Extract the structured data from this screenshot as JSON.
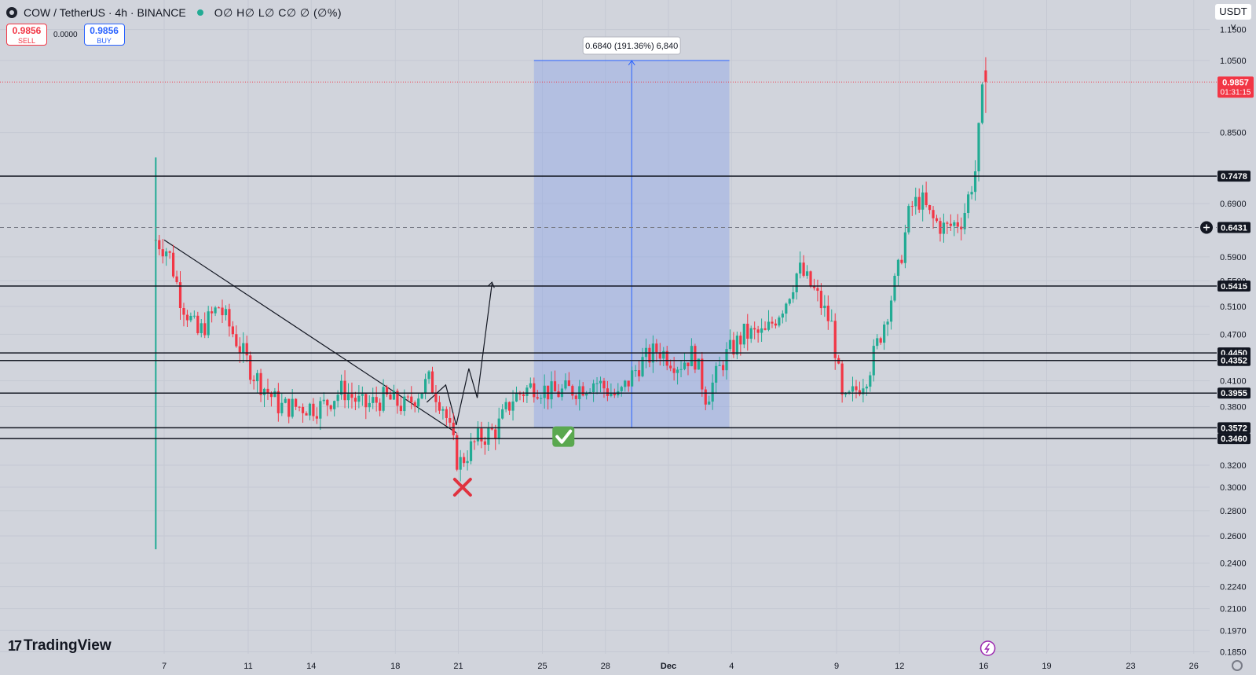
{
  "header": {
    "symbol": "COW / TetherUS · 4h · BINANCE",
    "ohlc": "O∅ H∅ L∅ C∅ ∅ (∅%)"
  },
  "trade": {
    "sell_price": "0.9856",
    "sell_label": "SELL",
    "spread": "0.0000",
    "buy_price": "0.9856",
    "buy_label": "BUY"
  },
  "currency_button": "USDT ˅",
  "brand": "TradingView",
  "colors": {
    "background": "#d1d4dc",
    "up": "#22ab94",
    "down": "#f23645",
    "range_fill": "#8fa7e6",
    "range_line": "#2962ff",
    "level_line": "#131722"
  },
  "icons": [
    "tradingview-logo-icon",
    "settings-icon",
    "lightning-icon",
    "plus-circle-icon",
    "checkmark-icon",
    "cross-icon"
  ],
  "chart_data": {
    "type": "candlestick",
    "symbol": "COW/USDT",
    "interval": "4h",
    "scale": "log",
    "y_ticks": [
      "1.1500",
      "1.0500",
      "0.8500",
      "0.6900",
      "0.5900",
      "0.5500",
      "0.5100",
      "0.4700",
      "0.4100",
      "0.3800",
      "0.3200",
      "0.3000",
      "0.2800",
      "0.2600",
      "0.2400",
      "0.2240",
      "0.2100",
      "0.1970",
      "0.1850"
    ],
    "x_ticks": [
      "7",
      "11",
      "14",
      "18",
      "21",
      "25",
      "28",
      "Dec",
      "4",
      "9",
      "12",
      "16",
      "19",
      "23",
      "26"
    ],
    "current_price": "0.9857",
    "countdown": "01:31:15",
    "crosshair_price": "0.6431",
    "horizontal_levels": [
      "0.7478",
      "0.5415",
      "0.4450",
      "0.4352",
      "0.3955",
      "0.3572",
      "0.3460"
    ],
    "price_range_label": "0.6840 (191.36%) 6,840",
    "key_points": [
      {
        "date": "Nov 6",
        "high": 0.79,
        "low": 0.25,
        "note": "listing wick"
      },
      {
        "date": "Nov 21",
        "low": 0.315,
        "note": "swing low (cross marker)"
      },
      {
        "date": "Nov 26",
        "price": 0.3572,
        "note": "checkmark entry"
      },
      {
        "date": "Dec 7",
        "high": 0.59
      },
      {
        "date": "Dec 9",
        "low": 0.357
      },
      {
        "date": "Dec 13",
        "high": 0.76
      },
      {
        "date": "Dec 16",
        "high": 1.06,
        "close": 0.9857
      }
    ]
  }
}
